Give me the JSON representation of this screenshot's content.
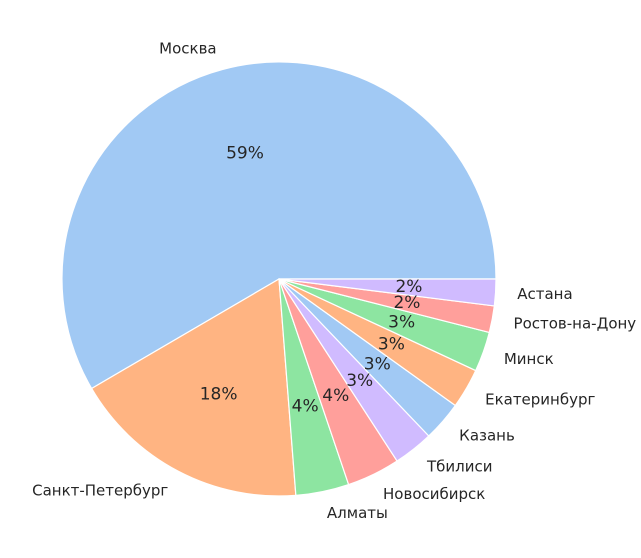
{
  "chart_data": {
    "type": "pie",
    "start_angle_deg": 0,
    "direction": "counterclockwise",
    "slices": [
      {
        "label": "Москва",
        "value": 59,
        "pct_label": "59%",
        "color": "#a1c9f4"
      },
      {
        "label": "Санкт-Петербург",
        "value": 18,
        "pct_label": "18%",
        "color": "#ffb482"
      },
      {
        "label": "Алматы",
        "value": 4,
        "pct_label": "4%",
        "color": "#8de5a1"
      },
      {
        "label": "Новосибирск",
        "value": 4,
        "pct_label": "4%",
        "color": "#ff9f9b"
      },
      {
        "label": "Тбилиси",
        "value": 3,
        "pct_label": "3%",
        "color": "#d0bbff"
      },
      {
        "label": "Казань",
        "value": 3,
        "pct_label": "3%",
        "color": "#a1c9f4"
      },
      {
        "label": "Екатеринбург",
        "value": 3,
        "pct_label": "3%",
        "color": "#ffb482"
      },
      {
        "label": "Минск",
        "value": 3,
        "pct_label": "3%",
        "color": "#8de5a1"
      },
      {
        "label": "Ростов-на-Дону",
        "value": 2,
        "pct_label": "2%",
        "color": "#ff9f9b"
      },
      {
        "label": "Астана",
        "value": 2,
        "pct_label": "2%",
        "color": "#d0bbff"
      }
    ]
  }
}
